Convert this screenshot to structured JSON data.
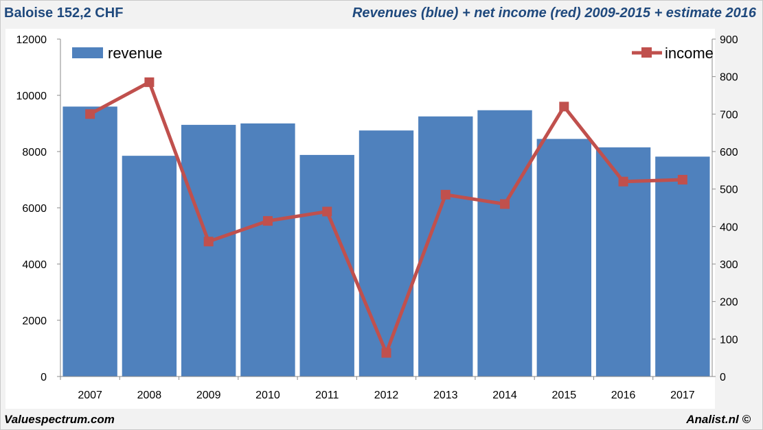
{
  "header": {
    "stock_label": "Baloise 152,2 CHF",
    "chart_title": "Revenues (blue) + net income (red) 2009-2015 + estimate 2016"
  },
  "footer": {
    "source_left": "Valuespectrum.com",
    "source_right": "Analist.nl ©"
  },
  "colors": {
    "bar": "#4f81bd",
    "line": "#c0504d",
    "title": "#1f497d"
  },
  "chart_data": {
    "type": "bar",
    "title": "Revenues (blue) + net income (red) 2009-2015 + estimate 2016",
    "categories": [
      "2007",
      "2008",
      "2009",
      "2010",
      "2011",
      "2012",
      "2013",
      "2014",
      "2015",
      "2016",
      "2017"
    ],
    "series": [
      {
        "name": "revenue",
        "type": "bar",
        "axis": "left",
        "values": [
          9600,
          7850,
          8950,
          9000,
          7880,
          8750,
          9250,
          9470,
          8450,
          8150,
          7820
        ]
      },
      {
        "name": "income",
        "type": "line",
        "axis": "right",
        "values": [
          700,
          785,
          360,
          415,
          440,
          63,
          485,
          460,
          720,
          520,
          525
        ]
      }
    ],
    "left_axis": {
      "ylim": [
        0,
        12000
      ],
      "ticks": [
        "0",
        "2000",
        "4000",
        "6000",
        "8000",
        "10000",
        "12000"
      ]
    },
    "right_axis": {
      "ylim": [
        0,
        900
      ],
      "ticks": [
        "0",
        "100",
        "200",
        "300",
        "400",
        "500",
        "600",
        "700",
        "800",
        "900"
      ]
    },
    "legend": [
      {
        "label": "revenue",
        "position": "top-left"
      },
      {
        "label": "income",
        "position": "top-right"
      }
    ],
    "grid": false
  }
}
